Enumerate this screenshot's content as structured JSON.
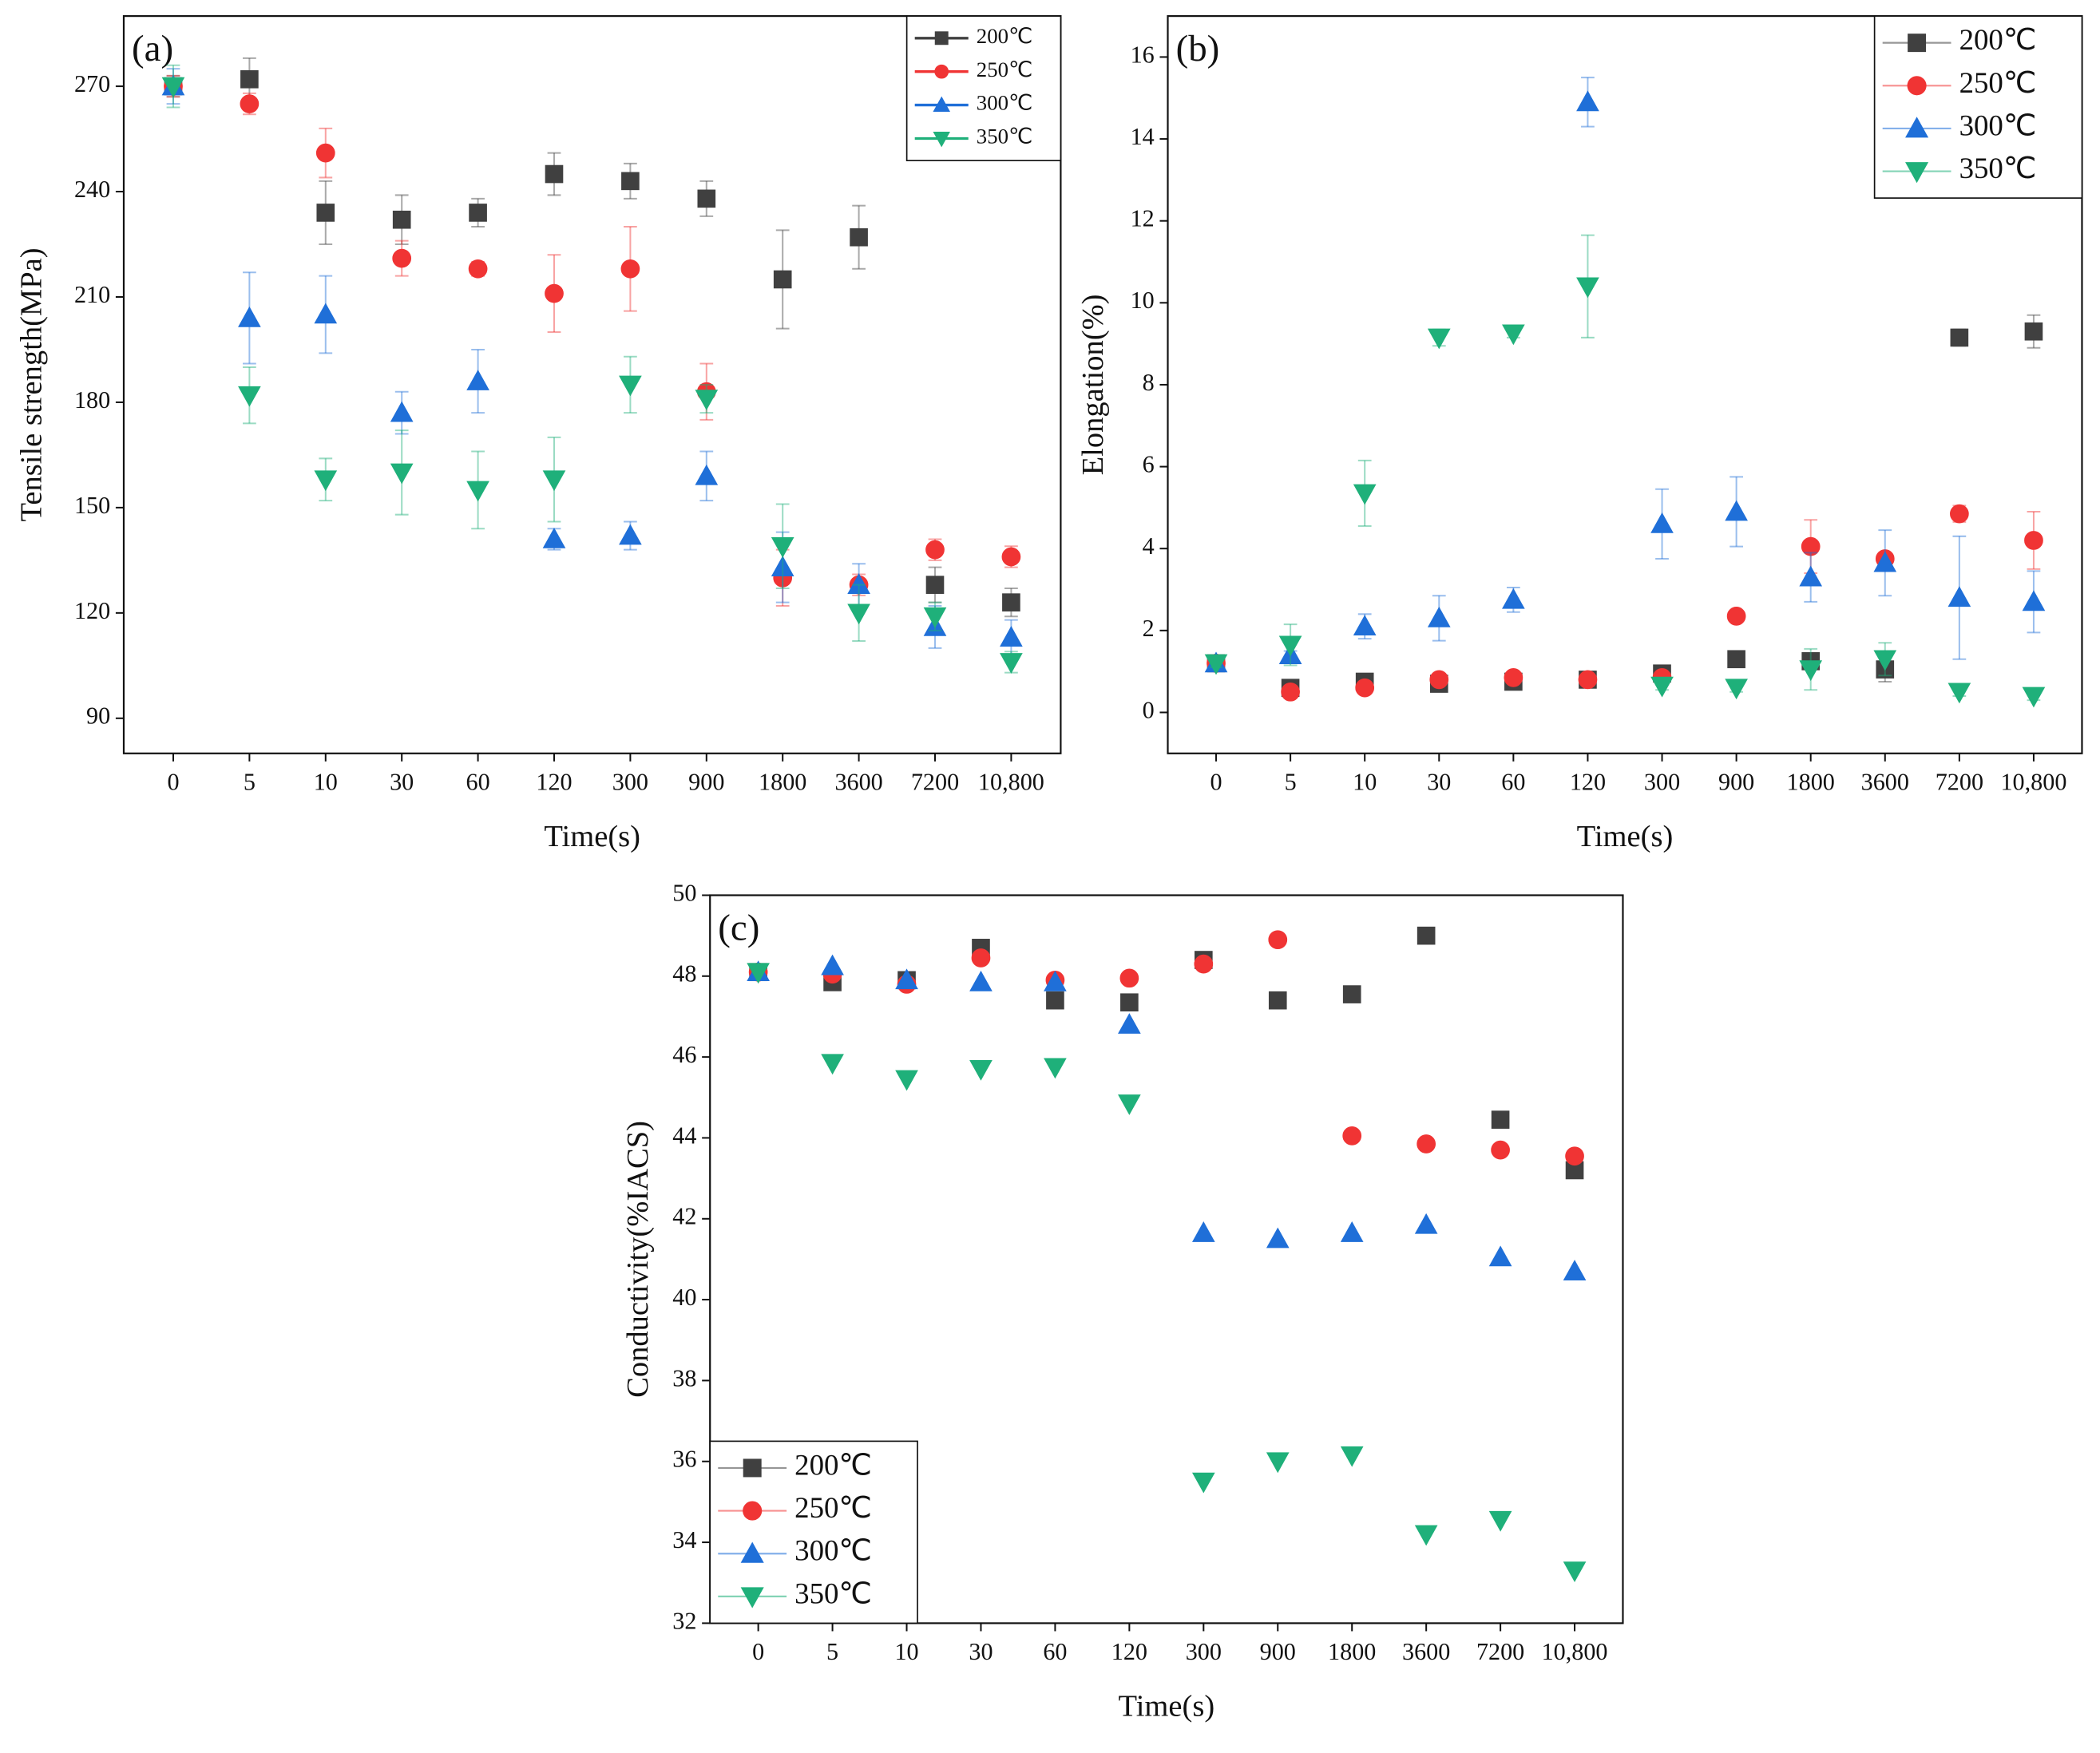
{
  "chart_data": [
    {
      "type": "line",
      "panel_label": "(a)",
      "xlabel": "Time(s)",
      "ylabel": "Tensile strength(MPa)",
      "categories": [
        "0",
        "5",
        "10",
        "30",
        "60",
        "120",
        "300",
        "900",
        "1800",
        "3600",
        "7200",
        "10,800"
      ],
      "ylim": [
        80,
        290
      ],
      "yticks": [
        90,
        120,
        150,
        180,
        210,
        240,
        270
      ],
      "legend": "upper right",
      "series": [
        {
          "name": "200℃",
          "color": "#404040",
          "marker": "square",
          "values": [
            270,
            272,
            234,
            232,
            234,
            245,
            243,
            238,
            215,
            227,
            128,
            123
          ],
          "errors": [
            3,
            6,
            9,
            7,
            4,
            6,
            5,
            5,
            14,
            9,
            5,
            4
          ]
        },
        {
          "name": "250℃",
          "color": "#f03434",
          "marker": "circle",
          "values": [
            270,
            265,
            251,
            221,
            218,
            211,
            218,
            183,
            130,
            128,
            138,
            136
          ],
          "errors": [
            3,
            3,
            7,
            5,
            2,
            11,
            12,
            8,
            8,
            3,
            3,
            3
          ]
        },
        {
          "name": "300℃",
          "color": "#1f6fd8",
          "marker": "triangle-up",
          "values": [
            270,
            204,
            205,
            177,
            186,
            141,
            142,
            159,
            133,
            128,
            116,
            113
          ],
          "errors": [
            5,
            13,
            11,
            6,
            9,
            3,
            4,
            7,
            10,
            6,
            6,
            5
          ]
        },
        {
          "name": "350℃",
          "color": "#1fb07a",
          "marker": "triangle-down",
          "values": [
            270,
            182,
            158,
            160,
            155,
            158,
            185,
            181,
            139,
            120,
            119,
            106
          ],
          "errors": [
            6,
            8,
            6,
            12,
            11,
            12,
            8,
            4,
            12,
            8,
            4,
            3
          ]
        }
      ]
    },
    {
      "type": "line",
      "panel_label": "(b)",
      "xlabel": "Time(s)",
      "ylabel": "Elongation(%)",
      "categories": [
        "0",
        "5",
        "10",
        "30",
        "60",
        "120",
        "300",
        "900",
        "1800",
        "3600",
        "7200",
        "10,800"
      ],
      "ylim": [
        -1,
        17
      ],
      "yticks": [
        0,
        2,
        4,
        6,
        8,
        10,
        12,
        14,
        16
      ],
      "legend": "upper right",
      "series": [
        {
          "name": "200℃",
          "color": "#404040",
          "marker": "square",
          "values": [
            1.2,
            0.6,
            0.75,
            0.7,
            0.75,
            0.8,
            0.95,
            1.3,
            1.25,
            1.05,
            9.15,
            9.3
          ],
          "errors": [
            0.1,
            0.1,
            0.1,
            0.1,
            0.1,
            0.1,
            0.1,
            0.1,
            0.1,
            0.3,
            0.2,
            0.4
          ]
        },
        {
          "name": "250℃",
          "color": "#f03434",
          "marker": "circle",
          "values": [
            1.2,
            0.5,
            0.6,
            0.8,
            0.85,
            0.8,
            0.85,
            2.35,
            4.05,
            3.75,
            4.85,
            4.2
          ],
          "errors": [
            0.1,
            0.1,
            0.1,
            0.1,
            0.1,
            0.1,
            0.1,
            0.1,
            0.65,
            0.15,
            0.2,
            0.7
          ]
        },
        {
          "name": "300℃",
          "color": "#1f6fd8",
          "marker": "triangle-up",
          "values": [
            1.2,
            1.4,
            2.1,
            2.3,
            2.75,
            14.9,
            4.6,
            4.9,
            3.3,
            3.65,
            2.8,
            2.7
          ],
          "errors": [
            0.1,
            0.1,
            0.3,
            0.55,
            0.3,
            0.6,
            0.85,
            0.85,
            0.6,
            0.8,
            1.5,
            0.75
          ]
        },
        {
          "name": "350℃",
          "color": "#1fb07a",
          "marker": "triangle-down",
          "values": [
            1.2,
            1.65,
            5.35,
            9.15,
            9.25,
            10.4,
            0.65,
            0.6,
            1.05,
            1.3,
            0.5,
            0.4
          ],
          "errors": [
            0.1,
            0.5,
            0.8,
            0.2,
            0.1,
            1.25,
            0.1,
            0.1,
            0.5,
            0.4,
            0.1,
            0.1
          ]
        }
      ]
    },
    {
      "type": "line",
      "panel_label": "(c)",
      "xlabel": "Time(s)",
      "ylabel": "Conductivity(%IACS)",
      "categories": [
        "0",
        "5",
        "10",
        "30",
        "60",
        "120",
        "300",
        "900",
        "1800",
        "3600",
        "7200",
        "10,800"
      ],
      "ylim": [
        32,
        50
      ],
      "yticks": [
        32,
        34,
        36,
        38,
        40,
        42,
        44,
        46,
        48,
        50
      ],
      "legend": "lower left",
      "series": [
        {
          "name": "200℃",
          "color": "#404040",
          "marker": "square",
          "values": [
            48.1,
            47.85,
            47.9,
            48.7,
            47.4,
            47.35,
            48.4,
            47.4,
            47.55,
            49.0,
            44.45,
            43.2
          ]
        },
        {
          "name": "250℃",
          "color": "#f03434",
          "marker": "circle",
          "values": [
            48.1,
            48.05,
            47.8,
            48.45,
            47.9,
            47.95,
            48.3,
            48.9,
            44.05,
            43.85,
            43.7,
            43.55
          ]
        },
        {
          "name": "300℃",
          "color": "#1f6fd8",
          "marker": "triangle-up",
          "values": [
            48.1,
            48.25,
            47.9,
            47.85,
            47.85,
            46.8,
            41.65,
            41.5,
            41.65,
            41.85,
            41.05,
            40.7
          ]
        },
        {
          "name": "350℃",
          "color": "#1fb07a",
          "marker": "triangle-down",
          "values": [
            48.1,
            45.85,
            45.45,
            45.7,
            45.75,
            44.85,
            35.5,
            36.0,
            36.15,
            34.2,
            34.55,
            33.3
          ]
        }
      ]
    }
  ]
}
